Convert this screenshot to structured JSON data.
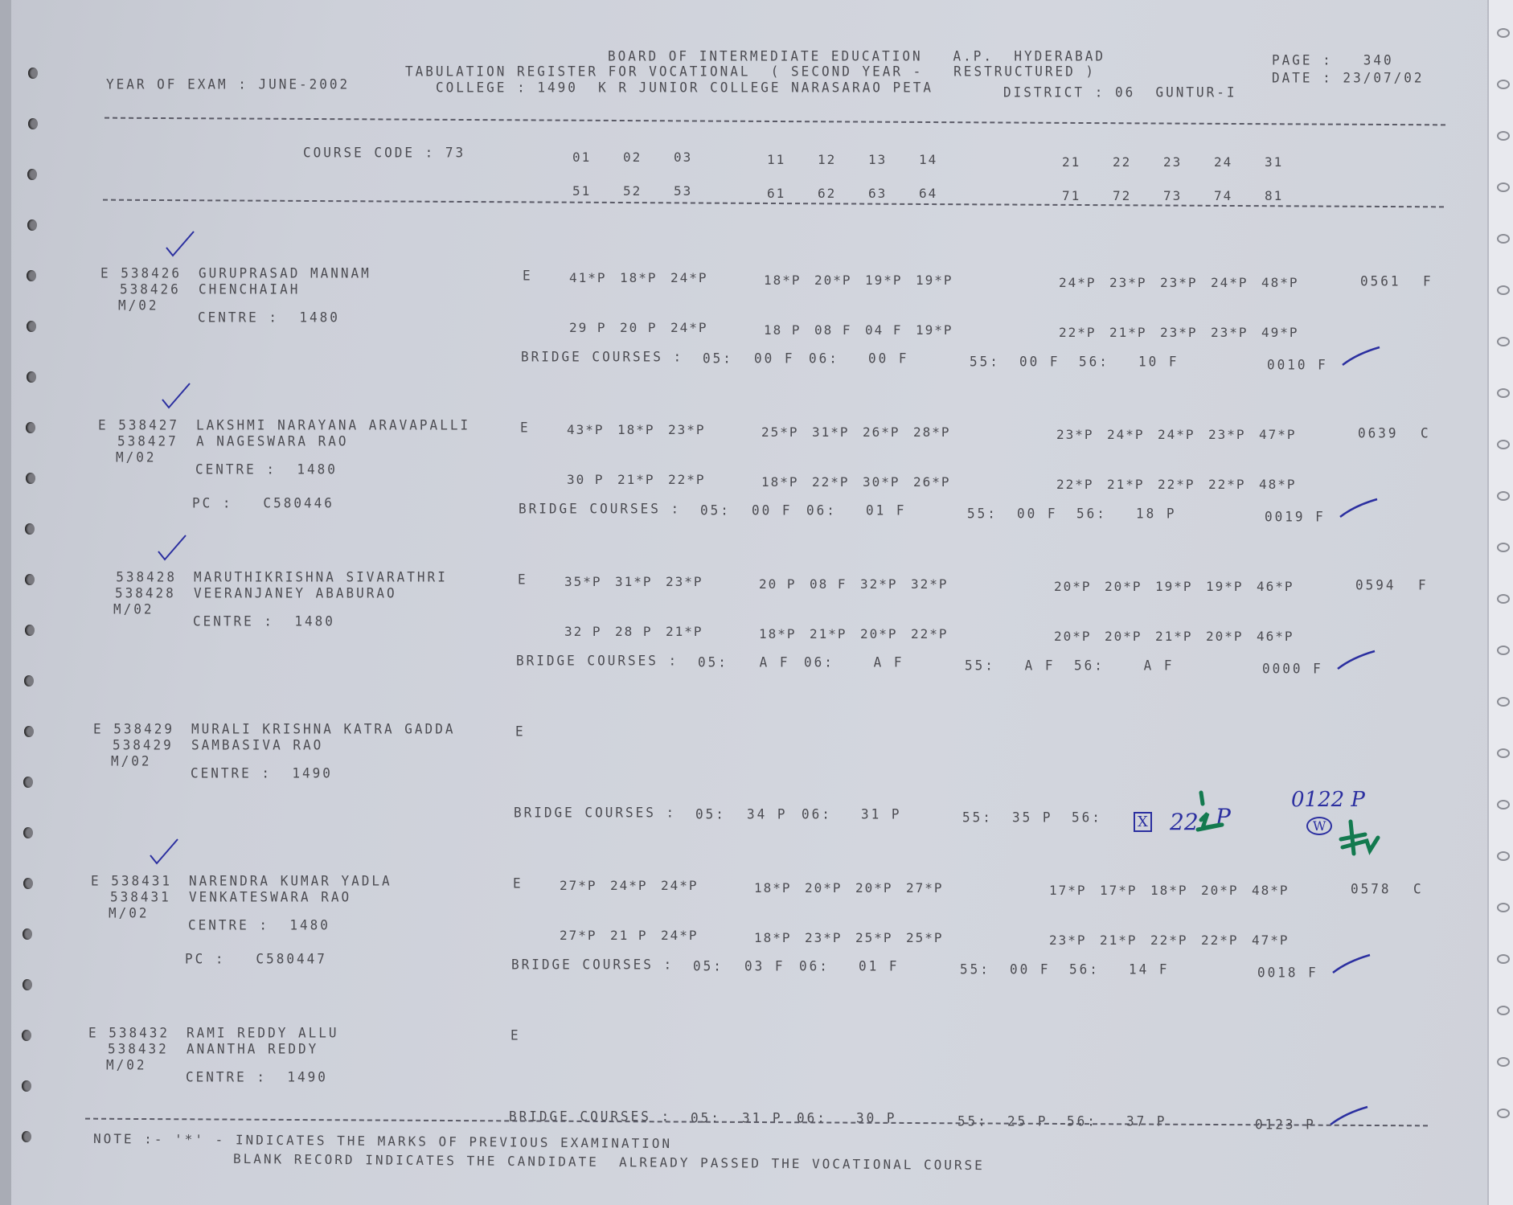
{
  "header": {
    "board": "BOARD OF INTERMEDIATE EDUCATION   A.P.  HYDERABAD",
    "register": "TABULATION REGISTER FOR VOCATIONAL  ( SECOND YEAR -   RESTRUCTURED )",
    "college": "COLLEGE : 1490  K R JUNIOR COLLEGE NARASARAO PETA",
    "district": "DISTRICT : 06  GUNTUR-I",
    "year_of_exam": "YEAR OF EXAM : JUNE-2002",
    "page": "PAGE :   340",
    "date": "DATE : 23/07/02"
  },
  "course": {
    "label": "COURSE CODE : 73",
    "codes_row1": [
      [
        "01",
        "02",
        "03"
      ],
      [
        "11",
        "12",
        "13",
        "14"
      ],
      [
        "21",
        "22",
        "23",
        "24",
        "31"
      ]
    ],
    "codes_row2": [
      [
        "51",
        "52",
        "53"
      ],
      [
        "61",
        "62",
        "63",
        "64"
      ],
      [
        "71",
        "72",
        "73",
        "74",
        "81"
      ]
    ]
  },
  "bridge_label": "BRIDGE COURSES :",
  "centre_label": "CENTRE :",
  "pc_label": "PC :",
  "records": [
    {
      "prefix": "E",
      "id": "538426",
      "name": "GURUPRASAD MANNAM",
      "father": "CHENCHAIAH",
      "group": "M/02",
      "centre": "1480",
      "pc": "",
      "medium": "E",
      "row1": [
        [
          "41*P",
          "18*P",
          "24*P"
        ],
        [
          "18*P",
          "20*P",
          "19*P",
          "19*P"
        ],
        [
          "24*P",
          "23*P",
          "23*P",
          "24*P",
          "48*P"
        ]
      ],
      "row2": [
        [
          "29 P",
          "20 P",
          "24*P"
        ],
        [
          "18 P",
          "08 F",
          "04 F",
          "19*P"
        ],
        [
          "22*P",
          "21*P",
          "23*P",
          "23*P",
          "49*P"
        ]
      ],
      "total": "0561",
      "result": "F",
      "checked": true,
      "bridge": {
        "05": "00 F",
        "06": "00 F",
        "55": "00 F",
        "56": "10 F",
        "total": "0010 F"
      }
    },
    {
      "prefix": "E",
      "id": "538427",
      "name": "LAKSHMI NARAYANA ARAVAPALLI",
      "father": "A NAGESWARA RAO",
      "group": "M/02",
      "centre": "1480",
      "pc": "C580446",
      "medium": "E",
      "row1": [
        [
          "43*P",
          "18*P",
          "23*P"
        ],
        [
          "25*P",
          "31*P",
          "26*P",
          "28*P"
        ],
        [
          "23*P",
          "24*P",
          "24*P",
          "23*P",
          "47*P"
        ]
      ],
      "row2": [
        [
          "30 P",
          "21*P",
          "22*P"
        ],
        [
          "18*P",
          "22*P",
          "30*P",
          "26*P"
        ],
        [
          "22*P",
          "21*P",
          "22*P",
          "22*P",
          "48*P"
        ]
      ],
      "total": "0639",
      "result": "C",
      "checked": true,
      "bridge": {
        "05": "00 F",
        "06": "01 F",
        "55": "00 F",
        "56": "18 P",
        "total": "0019 F"
      }
    },
    {
      "prefix": "",
      "id": "538428",
      "name": "MARUTHIKRISHNA SIVARATHRI",
      "father": "VEERANJANEY ABABURAO",
      "group": "M/02",
      "centre": "1480",
      "pc": "",
      "medium": "E",
      "row1": [
        [
          "35*P",
          "31*P",
          "23*P"
        ],
        [
          "20 P",
          "08 F",
          "32*P",
          "32*P"
        ],
        [
          "20*P",
          "20*P",
          "19*P",
          "19*P",
          "46*P"
        ]
      ],
      "row2": [
        [
          "32 P",
          "28 P",
          "21*P"
        ],
        [
          "18*P",
          "21*P",
          "20*P",
          "22*P"
        ],
        [
          "20*P",
          "20*P",
          "21*P",
          "20*P",
          "46*P"
        ]
      ],
      "total": "0594",
      "result": "F",
      "checked": true,
      "bridge": {
        "05": " A F",
        "06": " A F",
        "55": " A F",
        "56": " A F",
        "total": "0000 F"
      }
    },
    {
      "prefix": "E",
      "id": "538429",
      "name": "MURALI KRISHNA KATRA GADDA",
      "father": "SAMBASIVA RAO",
      "group": "M/02",
      "centre": "1490",
      "pc": "",
      "medium": "E",
      "row1": [],
      "row2": [],
      "total": "",
      "result": "",
      "checked": false,
      "bridge": {
        "05": "34 P",
        "06": "31 P",
        "55": "35 P",
        "56": "",
        "total": ""
      }
    },
    {
      "prefix": "E",
      "id": "538431",
      "name": "NARENDRA KUMAR YADLA",
      "father": "VENKATESWARA RAO",
      "group": "M/02",
      "centre": "1480",
      "pc": "C580447",
      "medium": "E",
      "row1": [
        [
          "27*P",
          "24*P",
          "24*P"
        ],
        [
          "18*P",
          "20*P",
          "20*P",
          "27*P"
        ],
        [
          "17*P",
          "17*P",
          "18*P",
          "20*P",
          "48*P"
        ]
      ],
      "row2": [
        [
          "27*P",
          "21 P",
          "24*P"
        ],
        [
          "18*P",
          "23*P",
          "25*P",
          "25*P"
        ],
        [
          "23*P",
          "21*P",
          "22*P",
          "22*P",
          "47*P"
        ]
      ],
      "total": "0578",
      "result": "C",
      "checked": true,
      "bridge": {
        "05": "03 F",
        "06": "01 F",
        "55": "00 F",
        "56": "14 F",
        "total": "0018 F"
      }
    },
    {
      "prefix": "E",
      "id": "538432",
      "name": "RAMI REDDY ALLU",
      "father": "ANANTHA REDDY",
      "group": "M/02",
      "centre": "1490",
      "pc": "",
      "medium": "E",
      "row1": [],
      "row2": [],
      "total": "",
      "result": "",
      "checked": false,
      "bridge": {
        "05": "31 P",
        "06": "30 P",
        "55": "25 P",
        "56": "37 P",
        "total": "0123 P"
      }
    }
  ],
  "handwritten": {
    "box_mark": "X",
    "mark_56": "22",
    "mark_56_result": "P",
    "total_corrected": "0122 P",
    "circled": "W"
  },
  "note": {
    "line1": "NOTE :- '*' - INDICATES THE MARKS OF PREVIOUS EXAMINATION",
    "line2": "BLANK RECORD INDICATES THE CANDIDATE  ALREADY PASSED THE VOCATIONAL COURSE"
  },
  "colors": {
    "paper": "#cdd0d9",
    "print": "#4c4c52",
    "ink_blue": "#2b2fa0",
    "ink_green": "#137a4f"
  }
}
